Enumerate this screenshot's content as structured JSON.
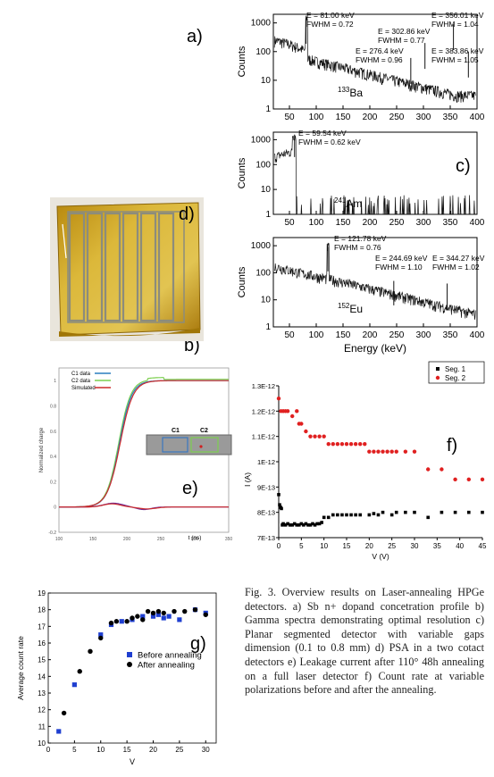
{
  "letters": {
    "a": "a)",
    "b": "b)",
    "c": "c)",
    "d": "d)",
    "e": "e)",
    "f": "f)",
    "g": "g)"
  },
  "caption": "Fig. 3. Overview results on Laser-annealing HPGe detectors. a) Sb n+ dopand concetration profile b) Gamma spectra demonstrating optimal resolution c) Planar segmented detector with variable gaps dimension (0.1 to 0.8 mm) d) PSA in a two cotact detectors e) Leakage current after 110° 48h annealing on a full laser detector f) Count rate at variable polarizations before and after the annealing.",
  "chart_data": [
    {
      "type": "line",
      "name": "Ba-133 spectrum",
      "ylabel": "Counts",
      "xlim": [
        20,
        400
      ],
      "ylim": [
        1,
        2000
      ],
      "yscale": "log",
      "xticks": [
        50,
        100,
        150,
        200,
        250,
        300,
        350,
        400
      ],
      "yticks": [
        {
          "v": 1,
          "l": "1"
        },
        {
          "v": 10,
          "l": "10"
        },
        {
          "v": 100,
          "l": "100"
        },
        {
          "v": 1000,
          "l": "1000"
        }
      ],
      "source_label": "133Ba",
      "source_mass": "133",
      "source_sym": "Ba",
      "annotations": [
        {
          "e": "E = 81.00 keV",
          "f": "FWHM = 0.72"
        },
        {
          "e": "E = 276.4 keV",
          "f": "FWHM = 0.96"
        },
        {
          "e": "E = 302.86 keV",
          "f": "FWHM = 0.77"
        },
        {
          "e": "E = 356.01 keV",
          "f": "FWHM = 1.04"
        },
        {
          "e": "E = 383.86 keV",
          "f": "FWHM = 1.05"
        }
      ],
      "peaks": [
        {
          "x": 81,
          "y": 1500
        },
        {
          "x": 276.4,
          "y": 60
        },
        {
          "x": 302.86,
          "y": 200
        },
        {
          "x": 356.01,
          "y": 900
        },
        {
          "x": 383.86,
          "y": 100
        }
      ]
    },
    {
      "type": "line",
      "name": "Am-241 spectrum",
      "ylabel": "Counts",
      "xlim": [
        20,
        400
      ],
      "ylim": [
        1,
        2000
      ],
      "yscale": "log",
      "xticks": [
        50,
        100,
        150,
        200,
        250,
        300,
        350,
        400
      ],
      "yticks": [
        {
          "v": 1,
          "l": "1"
        },
        {
          "v": 10,
          "l": "10"
        },
        {
          "v": 100,
          "l": "100"
        },
        {
          "v": 1000,
          "l": "1000"
        }
      ],
      "source_label": "241Am",
      "source_mass": "241",
      "source_sym": "Am",
      "annotations": [
        {
          "e": "E = 59.54 keV",
          "f": "FWHM = 0.62 keV"
        }
      ],
      "peaks": [
        {
          "x": 59.54,
          "y": 1600
        }
      ]
    },
    {
      "type": "line",
      "name": "Eu-152 spectrum",
      "ylabel": "Counts",
      "xlabel": "Energy (keV)",
      "xlim": [
        20,
        400
      ],
      "ylim": [
        1,
        2000
      ],
      "yscale": "log",
      "xticks": [
        50,
        100,
        150,
        200,
        250,
        300,
        350,
        400
      ],
      "yticks": [
        {
          "v": 1,
          "l": "1"
        },
        {
          "v": 10,
          "l": "10"
        },
        {
          "v": 100,
          "l": "100"
        },
        {
          "v": 1000,
          "l": "1000"
        }
      ],
      "source_label": "152Eu",
      "source_mass": "152",
      "source_sym": "Eu",
      "annotations": [
        {
          "e": "E = 121.78 keV",
          "f": "FWHM = 0.76"
        },
        {
          "e": "E = 244.69 keV",
          "f": "FWHM = 1.10"
        },
        {
          "e": "E = 344.27 keV",
          "f": "FWHM = 1.02"
        }
      ],
      "peaks": [
        {
          "x": 121.78,
          "y": 900
        },
        {
          "x": 244.69,
          "y": 50
        },
        {
          "x": 344.27,
          "y": 40
        }
      ]
    },
    {
      "type": "line",
      "name": "PSA normalized charge",
      "ylabel": "Normalized charge",
      "xlabel": "t (ns)",
      "xlim": [
        100,
        350
      ],
      "ylim": [
        -0.2,
        1.1
      ],
      "xticks": [
        100,
        150,
        200,
        250,
        300,
        350
      ],
      "yticks": [
        -0.2,
        0,
        0.2,
        0.4,
        0.6,
        0.8,
        1
      ],
      "legend": [
        "C1 data",
        "C2 data",
        "Simulated"
      ],
      "inset_labels": [
        "C1",
        "C2"
      ],
      "series_colors": [
        "#2a7fbf",
        "#7ccf4f",
        "#cc2a2a",
        "#6a2a9a"
      ]
    },
    {
      "type": "scatter",
      "name": "Leakage current",
      "ylabel": "I (A)",
      "xlabel": "V (V)",
      "xlim": [
        0,
        45
      ],
      "ylim": [
        7e-13,
        1.3e-12
      ],
      "xticks": [
        0,
        5,
        10,
        15,
        20,
        25,
        30,
        35,
        40,
        45
      ],
      "yticks": [
        {
          "v": 7e-13,
          "l": "7E-13"
        },
        {
          "v": 8e-13,
          "l": "8E-13"
        },
        {
          "v": 9e-13,
          "l": "9E-13"
        },
        {
          "v": 1e-12,
          "l": "1E-12"
        },
        {
          "v": 1.1e-12,
          "l": "1.1E-12"
        },
        {
          "v": 1.2e-12,
          "l": "1.2E-12"
        },
        {
          "v": 1.3e-12,
          "l": "1.3E-12"
        }
      ],
      "series": [
        {
          "name": "Seg. 1",
          "color": "#000000",
          "x": [
            0,
            0.2,
            0.4,
            0.6,
            0.8,
            1,
            1.5,
            2,
            2.5,
            3,
            3.5,
            4,
            4.5,
            5,
            5.5,
            6,
            6.5,
            7,
            7.5,
            8,
            8.5,
            9,
            9.5,
            10,
            11,
            12,
            13,
            14,
            15,
            16,
            17,
            18,
            20,
            21,
            22,
            23,
            25,
            26,
            28,
            30,
            33,
            36,
            39,
            42,
            45
          ],
          "y": [
            8.7e-13,
            8.3e-13,
            8.2e-13,
            8.15e-13,
            7.5e-13,
            7.55e-13,
            7.5e-13,
            7.55e-13,
            7.5e-13,
            7.5e-13,
            7.55e-13,
            7.5e-13,
            7.5e-13,
            7.55e-13,
            7.5e-13,
            7.55e-13,
            7.5e-13,
            7.5e-13,
            7.55e-13,
            7.5e-13,
            7.55e-13,
            7.55e-13,
            7.6e-13,
            7.8e-13,
            7.8e-13,
            7.9e-13,
            7.9e-13,
            7.9e-13,
            7.9e-13,
            7.9e-13,
            7.9e-13,
            7.9e-13,
            7.9e-13,
            7.95e-13,
            7.9e-13,
            8e-13,
            7.9e-13,
            8e-13,
            8e-13,
            8e-13,
            7.8e-13,
            8e-13,
            8e-13,
            8e-13,
            8e-13
          ]
        },
        {
          "name": "Seg. 2",
          "color": "#e02020",
          "x": [
            0,
            0.5,
            1,
            1.5,
            2,
            3,
            4,
            4.5,
            5,
            6,
            7,
            8,
            9,
            10,
            11,
            12,
            13,
            14,
            15,
            16,
            17,
            18,
            19,
            20,
            21,
            22,
            23,
            24,
            25,
            26,
            28,
            30,
            33,
            36,
            39,
            42,
            45
          ],
          "y": [
            1.25e-12,
            1.2e-12,
            1.2e-12,
            1.2e-12,
            1.2e-12,
            1.18e-12,
            1.2e-12,
            1.15e-12,
            1.15e-12,
            1.12e-12,
            1.1e-12,
            1.1e-12,
            1.1e-12,
            1.1e-12,
            1.07e-12,
            1.07e-12,
            1.07e-12,
            1.07e-12,
            1.07e-12,
            1.07e-12,
            1.07e-12,
            1.07e-12,
            1.07e-12,
            1.04e-12,
            1.04e-12,
            1.04e-12,
            1.04e-12,
            1.04e-12,
            1.04e-12,
            1.04e-12,
            1.04e-12,
            1.04e-12,
            9.7e-13,
            9.7e-13,
            9.3e-13,
            9.3e-13,
            9.3e-13
          ]
        }
      ]
    },
    {
      "type": "scatter",
      "name": "Count rate",
      "ylabel": "Average count rate",
      "xlabel": "V",
      "xlim": [
        0,
        32
      ],
      "ylim": [
        10,
        19
      ],
      "xticks": [
        0,
        5,
        10,
        15,
        20,
        25,
        30
      ],
      "yticks": [
        10,
        11,
        12,
        13,
        14,
        15,
        16,
        17,
        18,
        19
      ],
      "series": [
        {
          "name": "Before annealing",
          "color": "#1f3fd0",
          "marker": "square",
          "x": [
            2,
            5,
            10,
            12,
            14,
            16,
            18,
            20,
            21,
            22,
            23,
            25,
            28,
            30
          ],
          "y": [
            10.7,
            13.5,
            16.5,
            17.1,
            17.3,
            17.4,
            17.6,
            17.6,
            17.7,
            17.5,
            17.6,
            17.4,
            18.0,
            17.8
          ]
        },
        {
          "name": "After annealing",
          "color": "#000000",
          "marker": "circle",
          "x": [
            3,
            6,
            8,
            10,
            12,
            13,
            15,
            16,
            17,
            18,
            19,
            20,
            21,
            22,
            24,
            26,
            28,
            30
          ],
          "y": [
            11.8,
            14.3,
            15.5,
            16.3,
            17.2,
            17.3,
            17.3,
            17.5,
            17.6,
            17.4,
            17.9,
            17.8,
            17.9,
            17.8,
            17.9,
            17.9,
            18.0,
            17.7
          ]
        }
      ]
    }
  ]
}
